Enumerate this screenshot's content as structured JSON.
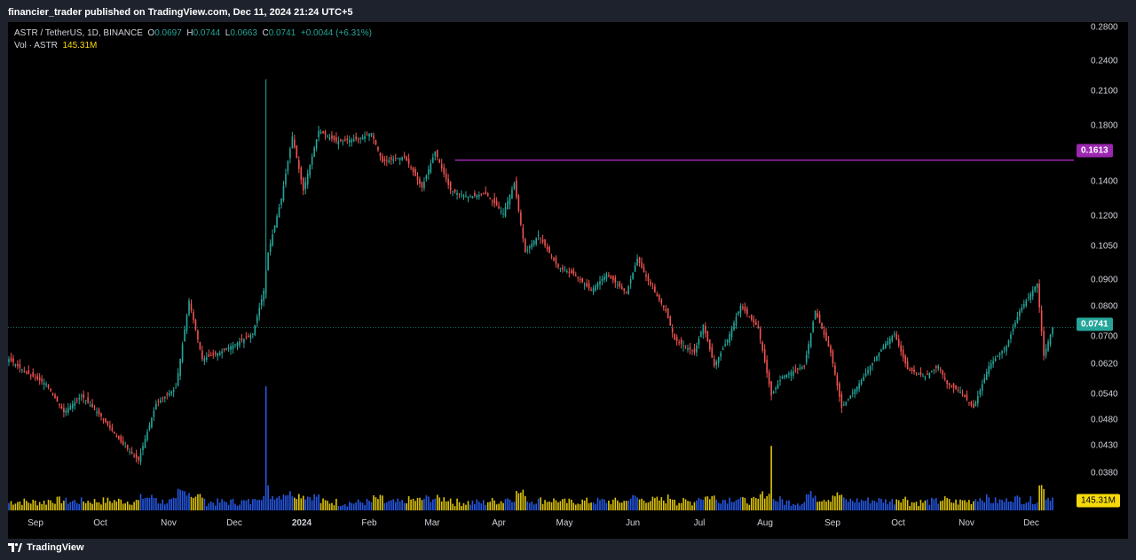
{
  "header": {
    "published_line": "financier_trader published on TradingView.com, Dec 11, 2024 21:24 UTC+5"
  },
  "legend": {
    "symbol": "ASTR / TetherUS, 1D, BINANCE",
    "o_label": "O",
    "o_value": "0.0697",
    "h_label": "H",
    "h_value": "0.0744",
    "l_label": "L",
    "l_value": "0.0663",
    "c_label": "C",
    "c_value": "0.0741",
    "change": "+0.0044 (+6.31%)",
    "vol_label": "Vol · ASTR",
    "vol_value": "145.31M"
  },
  "price_axis": {
    "ticks": [
      "0.2800",
      "0.2400",
      "0.2100",
      "0.1800",
      "0.1400",
      "0.1200",
      "0.1050",
      "0.0900",
      "0.0800",
      "0.0700",
      "0.0620",
      "0.0540",
      "0.0480",
      "0.0430",
      "0.0380"
    ]
  },
  "badges": {
    "alert_level": "0.1613",
    "last_price": "0.0741",
    "volume": "145.31M"
  },
  "time_axis": {
    "labels": [
      "Sep",
      "Oct",
      "Nov",
      "Dec",
      "2024",
      "Feb",
      "Mar",
      "Apr",
      "May",
      "Jun",
      "Jul",
      "Aug",
      "Sep",
      "Oct",
      "Nov",
      "Dec"
    ]
  },
  "footer": {
    "brand": "TradingView",
    "logo_icon": "tradingview-logo-icon"
  },
  "colors": {
    "up": "#26a69a",
    "down": "#ef5350",
    "alert_line": "#9c27b0",
    "volume_up": "#2962ff",
    "volume_down": "#f5d90a",
    "background": "#000000",
    "frame": "#1e222d"
  },
  "chart_data": {
    "type": "candlestick",
    "scale": "log",
    "title": "ASTR / TetherUS, 1D, BINANCE",
    "ylim": [
      0.036,
      0.3
    ],
    "x_range": [
      "2023-08-24",
      "2024-12-11"
    ],
    "horizontal_line": 0.1613,
    "last_close": 0.0741,
    "close_path": [
      {
        "date": "2023-08-24",
        "close": 0.064
      },
      {
        "date": "2023-09-01",
        "close": 0.06
      },
      {
        "date": "2023-09-10",
        "close": 0.057
      },
      {
        "date": "2023-09-18",
        "close": 0.05
      },
      {
        "date": "2023-09-26",
        "close": 0.054
      },
      {
        "date": "2023-10-05",
        "close": 0.049
      },
      {
        "date": "2023-10-15",
        "close": 0.043
      },
      {
        "date": "2023-10-22",
        "close": 0.04
      },
      {
        "date": "2023-10-30",
        "close": 0.052
      },
      {
        "date": "2023-11-08",
        "close": 0.056
      },
      {
        "date": "2023-11-14",
        "close": 0.084
      },
      {
        "date": "2023-11-20",
        "close": 0.064
      },
      {
        "date": "2023-11-28",
        "close": 0.066
      },
      {
        "date": "2023-12-06",
        "close": 0.069
      },
      {
        "date": "2023-12-13",
        "close": 0.072
      },
      {
        "date": "2023-12-18",
        "close": 0.088
      },
      {
        "date": "2023-12-20",
        "close": 0.105
      },
      {
        "date": "2023-12-26",
        "close": 0.135
      },
      {
        "date": "2023-12-31",
        "close": 0.18
      },
      {
        "date": "2024-01-05",
        "close": 0.14
      },
      {
        "date": "2024-01-12",
        "close": 0.185
      },
      {
        "date": "2024-01-20",
        "close": 0.176
      },
      {
        "date": "2024-01-30",
        "close": 0.178
      },
      {
        "date": "2024-02-05",
        "close": 0.183
      },
      {
        "date": "2024-02-10",
        "close": 0.16
      },
      {
        "date": "2024-02-20",
        "close": 0.164
      },
      {
        "date": "2024-02-28",
        "close": 0.142
      },
      {
        "date": "2024-03-05",
        "close": 0.168
      },
      {
        "date": "2024-03-12",
        "close": 0.14
      },
      {
        "date": "2024-03-20",
        "close": 0.136
      },
      {
        "date": "2024-03-28",
        "close": 0.138
      },
      {
        "date": "2024-04-05",
        "close": 0.126
      },
      {
        "date": "2024-04-10",
        "close": 0.145
      },
      {
        "date": "2024-04-15",
        "close": 0.105
      },
      {
        "date": "2024-04-21",
        "close": 0.114
      },
      {
        "date": "2024-04-30",
        "close": 0.098
      },
      {
        "date": "2024-05-07",
        "close": 0.095
      },
      {
        "date": "2024-05-15",
        "close": 0.088
      },
      {
        "date": "2024-05-22",
        "close": 0.095
      },
      {
        "date": "2024-05-31",
        "close": 0.087
      },
      {
        "date": "2024-06-05",
        "close": 0.102
      },
      {
        "date": "2024-06-10",
        "close": 0.092
      },
      {
        "date": "2024-06-18",
        "close": 0.08
      },
      {
        "date": "2024-06-22",
        "close": 0.07
      },
      {
        "date": "2024-07-01",
        "close": 0.066
      },
      {
        "date": "2024-07-05",
        "close": 0.075
      },
      {
        "date": "2024-07-10",
        "close": 0.062
      },
      {
        "date": "2024-07-16",
        "close": 0.07
      },
      {
        "date": "2024-07-22",
        "close": 0.082
      },
      {
        "date": "2024-07-30",
        "close": 0.074
      },
      {
        "date": "2024-08-05",
        "close": 0.054
      },
      {
        "date": "2024-08-10",
        "close": 0.059
      },
      {
        "date": "2024-08-20",
        "close": 0.062
      },
      {
        "date": "2024-08-25",
        "close": 0.08
      },
      {
        "date": "2024-09-01",
        "close": 0.066
      },
      {
        "date": "2024-09-06",
        "close": 0.051
      },
      {
        "date": "2024-09-15",
        "close": 0.058
      },
      {
        "date": "2024-09-25",
        "close": 0.068
      },
      {
        "date": "2024-09-30",
        "close": 0.072
      },
      {
        "date": "2024-10-06",
        "close": 0.061
      },
      {
        "date": "2024-10-14",
        "close": 0.059
      },
      {
        "date": "2024-10-20",
        "close": 0.062
      },
      {
        "date": "2024-10-24",
        "close": 0.057
      },
      {
        "date": "2024-10-30",
        "close": 0.055
      },
      {
        "date": "2024-11-05",
        "close": 0.051
      },
      {
        "date": "2024-11-12",
        "close": 0.062
      },
      {
        "date": "2024-11-20",
        "close": 0.068
      },
      {
        "date": "2024-11-26",
        "close": 0.08
      },
      {
        "date": "2024-12-04",
        "close": 0.091
      },
      {
        "date": "2024-12-07",
        "close": 0.065
      },
      {
        "date": "2024-12-11",
        "close": 0.0741
      }
    ],
    "volume_spikes": [
      {
        "date": "2023-12-19",
        "volume_relative": 1.0
      },
      {
        "date": "2024-08-05",
        "volume_relative": 0.52
      }
    ]
  }
}
